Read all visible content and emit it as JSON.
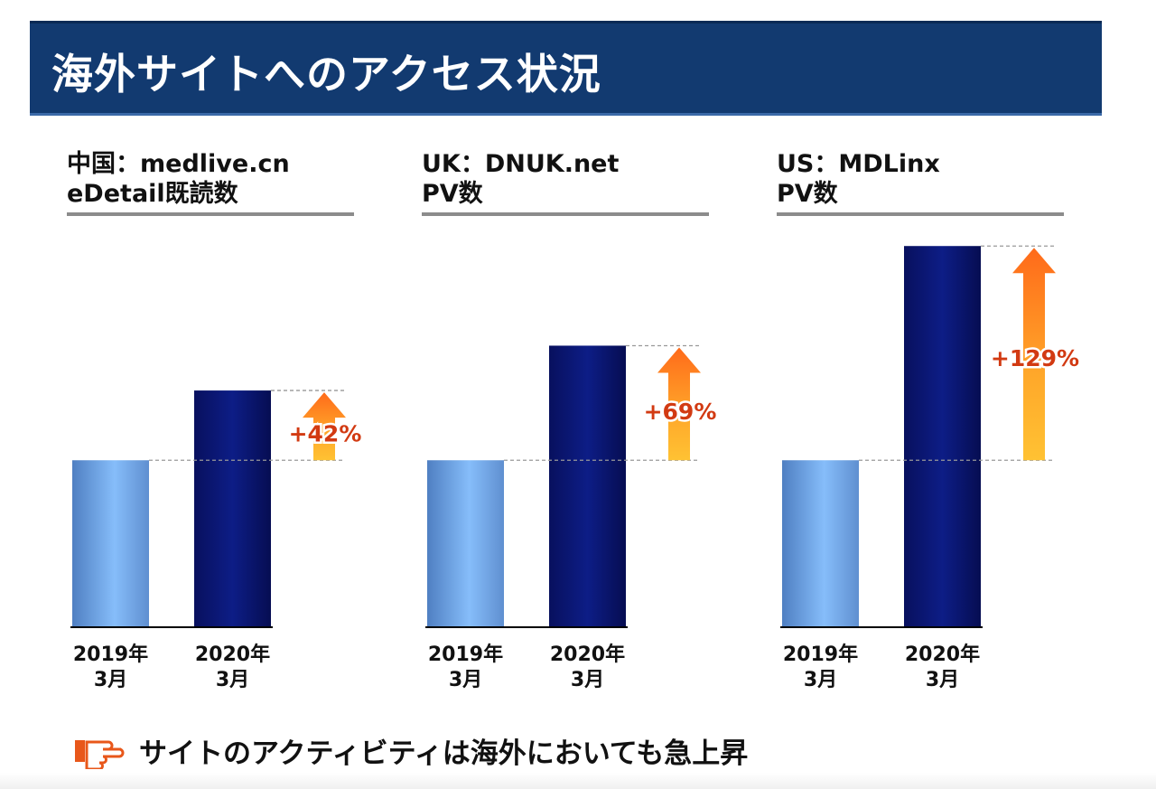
{
  "title": "海外サイトへのアクセス状況",
  "colors": {
    "header_bg": "#123a70",
    "bar_2019": "#7fb4f6",
    "bar_2020": "#0b1a78",
    "growth": "#d23a12",
    "arrow": "#ff8a1f"
  },
  "panels": [
    {
      "heading1": "中国：medlive.cn",
      "heading2": "eDetail既読数"
    },
    {
      "heading1": "UK：DNUK.net",
      "heading2": "PV数"
    },
    {
      "heading1": "US：MDLinx",
      "heading2": "PV数"
    }
  ],
  "chart_data": [
    {
      "type": "bar",
      "title": "中国：medlive.cn eDetail既読数",
      "categories": [
        [
          "2019年",
          "3月"
        ],
        [
          "2020年",
          "3月"
        ]
      ],
      "values": [
        100,
        142
      ],
      "growth_label": "+42%",
      "ylim": [
        0,
        240
      ]
    },
    {
      "type": "bar",
      "title": "UK：DNUK.net PV数",
      "categories": [
        [
          "2019年",
          "3月"
        ],
        [
          "2020年",
          "3月"
        ]
      ],
      "values": [
        100,
        169
      ],
      "growth_label": "+69%",
      "ylim": [
        0,
        240
      ]
    },
    {
      "type": "bar",
      "title": "US：MDLinx PV数",
      "categories": [
        [
          "2019年",
          "3月"
        ],
        [
          "2020年",
          "3月"
        ]
      ],
      "values": [
        100,
        229
      ],
      "growth_label": "+129%",
      "ylim": [
        0,
        240
      ]
    }
  ],
  "footer": {
    "icon": "pointing-hand-icon",
    "text": "サイトのアクティビティは海外においても急上昇"
  }
}
